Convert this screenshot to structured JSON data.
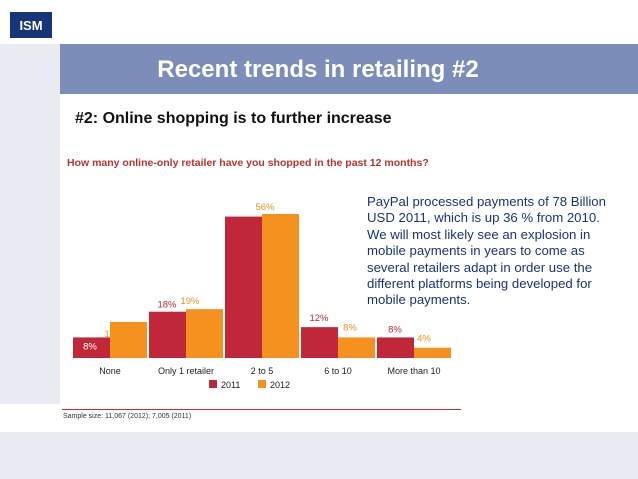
{
  "logo": {
    "text": "ISM"
  },
  "slide": {
    "title": "Recent trends in retailing #2",
    "subtitle": "#2: Online shopping is to further increase",
    "question": "How many online-only retailer have you shopped in the past 12 months?",
    "note": "PayPal processed payments of 78 Billion USD 2011, which is up 36 % from 2010. We will most likely see an explosion in mobile payments in years to come as several retailers adapt in order use the different platforms being developed for mobile payments.",
    "sample": "Sample size: 11,067 (2012); 7,005 (2011)"
  },
  "colors": {
    "s2011": "#c0283a",
    "s2012": "#f5921f",
    "header": "#7b8db8",
    "logo": "#17357a"
  },
  "chart_data": {
    "type": "bar",
    "categories": [
      "None",
      "Only 1 retailer",
      "2 to 5",
      "6 to 10",
      "More than 10"
    ],
    "series": [
      {
        "name": "2011",
        "values": [
          8,
          18,
          55,
          12,
          8
        ],
        "labels": [
          "8%",
          "18%",
          "55%",
          "12%",
          "8%"
        ]
      },
      {
        "name": "2012",
        "values": [
          14,
          19,
          56,
          8,
          4
        ],
        "labels": [
          "14%",
          "19%",
          "56%",
          "8%",
          "4%"
        ]
      }
    ],
    "legend_placement": "bottom",
    "ylim": [
      0,
      60
    ],
    "grid": false
  }
}
